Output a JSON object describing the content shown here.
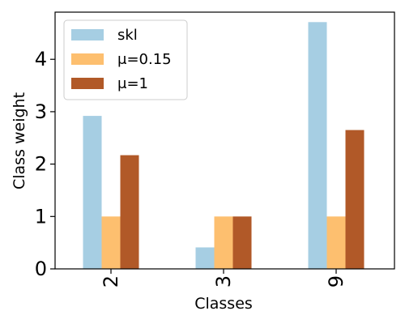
{
  "chart_data": {
    "type": "bar",
    "title": "",
    "xlabel": "Classes",
    "ylabel": "Class weight",
    "categories": [
      "2",
      "3",
      "9"
    ],
    "series": [
      {
        "name": "skl",
        "values": [
          2.92,
          0.41,
          4.71
        ],
        "color": "#a6cee3"
      },
      {
        "name": "μ=0.15",
        "values": [
          1.0,
          1.0,
          1.0
        ],
        "color": "#fdbf6f"
      },
      {
        "name": "μ=1",
        "values": [
          2.17,
          1.0,
          2.65
        ],
        "color": "#b15928"
      }
    ],
    "ylim": [
      0,
      4.9
    ],
    "yticks": [
      0,
      1,
      2,
      3,
      4
    ],
    "xtick_rotation": 90,
    "grid": false,
    "legend_position": "top-left"
  }
}
